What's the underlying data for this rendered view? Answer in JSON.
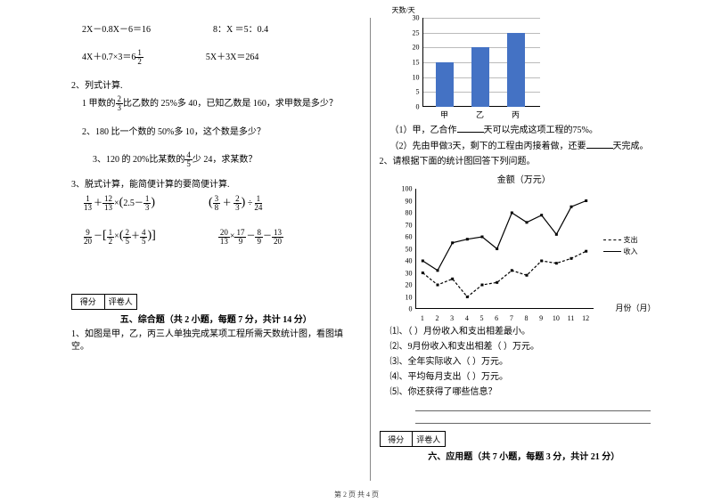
{
  "left": {
    "eq_row1": {
      "a": "2X－0.8X－6＝16",
      "b": "8：X ＝5：0.4"
    },
    "eq_row2": {
      "a_pre": "4X＋0.7×3＝6",
      "a_frac_num": "1",
      "a_frac_den": "2",
      "b": "5X＋3X＝264"
    },
    "q2_title": "2、列式计算.",
    "q2_1_pre": "1 甲数的",
    "q2_1_n": "2",
    "q2_1_d": "3",
    "q2_1_post": "比乙数的 25%多 40，已知乙数是 160，求甲数是多少？",
    "q2_2": "2、180 比一个数的 50%多 10，这个数是多少？",
    "q2_3_pre": "3、120 的 20%比某数的",
    "q2_3_n": "4",
    "q2_3_d": "5",
    "q2_3_post": "少 24，求某数？",
    "q3_title": "3、脱式计算，能简便计算的要简便计算.",
    "q3_r1a": {
      "f1n": "1",
      "f1d": "13",
      "plus": "＋",
      "f2n": "12",
      "f2d": "13",
      "times": "×",
      "lp": "(",
      "mid": "2.5－",
      "f3n": "1",
      "f3d": "3",
      "rp": ")"
    },
    "q3_r1b": {
      "lp": "(",
      "f1n": "3",
      "f1d": "8",
      "plus": " ＋ ",
      "f2n": "2",
      "f2d": "3",
      "rp": ")",
      "div": " ÷",
      "f3n": "1",
      "f3d": "24"
    },
    "q3_r2a": {
      "f1n": "9",
      "f1d": "20",
      "minus": "－",
      "lb": "[",
      "f2n": "1",
      "f2d": "2",
      "times": "×",
      "lp": "(",
      "f3n": "2",
      "f3d": "5",
      "plus": "＋",
      "f4n": "4",
      "f4d": "5",
      "rp": ")",
      "rb": "]"
    },
    "q3_r2b": {
      "f1n": "20",
      "f1d": "13",
      "times1": "×",
      "f2n": "17",
      "f2d": "9",
      "minus": "－",
      "f3n": "8",
      "f3d": "9",
      "minus2": "－",
      "f4n": "13",
      "f4d": "20"
    },
    "score": {
      "a": "得分",
      "b": "评卷人"
    },
    "section5": "五、综合题（共 2 小题，每题 7 分，共计 14 分）",
    "q5_1": "1、如图是甲，乙，丙三人单独完成某项工程所需天数统计图，看图填空。"
  },
  "right": {
    "bar_chart": {
      "type": "bar",
      "y_label": "天数/天",
      "ylim": [
        0,
        30
      ],
      "ytick_step": 5,
      "yticks": [
        "0",
        "5",
        "10",
        "15",
        "20",
        "25",
        "30"
      ],
      "categories": [
        "甲",
        "乙",
        "丙"
      ],
      "values": [
        15,
        20,
        25
      ],
      "bar_color": "#4472c4",
      "grid_color": "#bbbbbb",
      "background_color": "#ffffff"
    },
    "q1_1_pre": "（1）甲，乙合作",
    "q1_1_post": "天可以完成这项工程的75%。",
    "q1_2_pre": "（2）先由甲做3天，剩下的工程由丙接着做，还要",
    "q1_2_post": "天完成。",
    "q2_title": "2、请根据下面的统计图回答下列问题。",
    "line_chart_title": "金额（万元）",
    "line_chart": {
      "type": "line",
      "ylim": [
        0,
        100
      ],
      "ytick_step": 10,
      "yticks": [
        "0",
        "10",
        "20",
        "30",
        "40",
        "50",
        "60",
        "70",
        "80",
        "90",
        "100"
      ],
      "xlabels": [
        "1",
        "2",
        "3",
        "4",
        "5",
        "6",
        "7",
        "8",
        "9",
        "10",
        "11",
        "12"
      ],
      "x_axis_title": "月份（月）",
      "series": [
        {
          "name": "支出",
          "style": "dashed",
          "color": "#000000",
          "values": [
            30,
            20,
            25,
            10,
            20,
            22,
            32,
            28,
            40,
            38,
            42,
            48
          ]
        },
        {
          "name": "收入",
          "style": "solid",
          "color": "#000000",
          "values": [
            40,
            32,
            55,
            58,
            60,
            50,
            80,
            72,
            78,
            62,
            85,
            90
          ]
        }
      ],
      "background_color": "#ffffff"
    },
    "legend": {
      "out": "支出",
      "in": "收入"
    },
    "sub_q1": "⑴、（   ）月份收入和支出相差最小。",
    "sub_q2": "⑵、9月份收入和支出相差（   ）万元。",
    "sub_q3": "⑶、全年实际收入（   ）万元。",
    "sub_q4": "⑷、平均每月支出（   ）万元。",
    "sub_q5": "⑸、你还获得了哪些信息？",
    "score": {
      "a": "得分",
      "b": "评卷人"
    },
    "section6": "六、应用题（共 7 小题，每题 3 分，共计 21 分）"
  },
  "footer": "第 2 页 共 4 页"
}
